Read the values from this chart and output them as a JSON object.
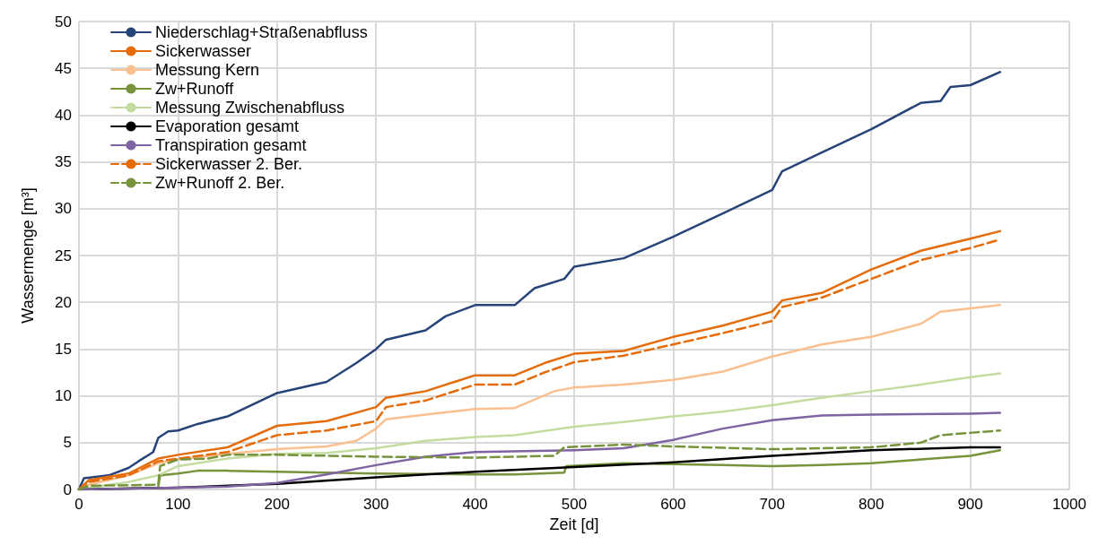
{
  "chart_data": {
    "type": "line",
    "xlabel": "Zeit [d]",
    "ylabel": "Wassermenge [m³]",
    "xlim": [
      0,
      1000
    ],
    "xticks": [
      0,
      100,
      200,
      300,
      400,
      500,
      600,
      700,
      800,
      900,
      1000
    ],
    "ylim": [
      0,
      50
    ],
    "yticks": [
      0,
      5,
      10,
      15,
      20,
      25,
      30,
      35,
      40,
      45,
      50
    ],
    "grid": true,
    "legend": "top left",
    "marker": "none",
    "series": [
      {
        "name": "Niederschlag+Straßenabfluss",
        "color": "#264478",
        "line_style": "solid",
        "x": [
          0,
          5,
          30,
          50,
          60,
          75,
          80,
          90,
          100,
          120,
          150,
          200,
          250,
          280,
          300,
          310,
          350,
          370,
          400,
          440,
          460,
          490,
          500,
          550,
          600,
          650,
          700,
          710,
          750,
          800,
          850,
          870,
          880,
          900,
          930
        ],
        "values": [
          0,
          1.2,
          1.5,
          2.3,
          3,
          4,
          5.5,
          6.2,
          6.3,
          7,
          7.8,
          10.3,
          11.5,
          13.5,
          15,
          16,
          17,
          18.5,
          19.7,
          19.7,
          21.5,
          22.5,
          23.8,
          24.7,
          27,
          29.5,
          32,
          34,
          36,
          38.5,
          41.3,
          41.5,
          43,
          43.2,
          44.6
        ]
      },
      {
        "name": "Sickerwasser",
        "color": "#e46c0a",
        "line_style": "solid",
        "x": [
          0,
          10,
          50,
          80,
          100,
          150,
          200,
          250,
          300,
          310,
          350,
          400,
          440,
          470,
          500,
          550,
          600,
          650,
          700,
          710,
          750,
          800,
          850,
          900,
          930
        ],
        "values": [
          0,
          1,
          1.7,
          3.3,
          3.7,
          4.5,
          6.8,
          7.3,
          8.8,
          9.8,
          10.5,
          12.2,
          12.2,
          13.5,
          14.5,
          14.8,
          16.3,
          17.5,
          19,
          20.2,
          21,
          23.5,
          25.5,
          26.8,
          27.6
        ]
      },
      {
        "name": "Messung Kern",
        "color": "#fac090",
        "line_style": "solid",
        "x": [
          0,
          10,
          50,
          80,
          100,
          150,
          200,
          250,
          280,
          300,
          310,
          350,
          400,
          440,
          480,
          500,
          550,
          600,
          650,
          700,
          750,
          800,
          850,
          870,
          930
        ],
        "values": [
          0,
          0.5,
          1.5,
          2.8,
          3.2,
          3.8,
          4.3,
          4.6,
          5.2,
          6.5,
          7.5,
          8,
          8.6,
          8.7,
          10.5,
          10.9,
          11.2,
          11.7,
          12.6,
          14.2,
          15.5,
          16.3,
          17.7,
          19,
          19.7
        ]
      },
      {
        "name": "Zw+Runoff",
        "color": "#77933c",
        "line_style": "solid",
        "x": [
          0,
          80,
          82,
          100,
          120,
          150,
          200,
          300,
          400,
          440,
          490,
          492,
          550,
          600,
          650,
          700,
          750,
          800,
          850,
          900,
          930
        ],
        "values": [
          0,
          0.2,
          1.5,
          1.7,
          2,
          2,
          1.9,
          1.7,
          1.6,
          1.6,
          1.8,
          2.5,
          2.8,
          2.7,
          2.6,
          2.5,
          2.6,
          2.8,
          3.2,
          3.6,
          4.2
        ]
      },
      {
        "name": "Messung Zwischenabfluss",
        "color": "#c4dc9f",
        "line_style": "solid",
        "x": [
          0,
          50,
          80,
          100,
          150,
          200,
          250,
          300,
          350,
          400,
          440,
          500,
          550,
          600,
          650,
          700,
          750,
          800,
          850,
          900,
          930
        ],
        "values": [
          0,
          0.8,
          1.5,
          2.5,
          3.3,
          3.8,
          3.9,
          4.4,
          5.2,
          5.6,
          5.8,
          6.7,
          7.2,
          7.8,
          8.3,
          9,
          9.8,
          10.5,
          11.2,
          12,
          12.4
        ]
      },
      {
        "name": "Evaporation gesamt",
        "color": "#000000",
        "line_style": "solid",
        "x": [
          0,
          100,
          200,
          300,
          400,
          500,
          600,
          700,
          800,
          900,
          930
        ],
        "values": [
          0,
          0.2,
          0.6,
          1.3,
          1.9,
          2.4,
          2.9,
          3.6,
          4.2,
          4.5,
          4.5
        ]
      },
      {
        "name": "Transpiration gesamt",
        "color": "#8064a2",
        "line_style": "solid",
        "x": [
          0,
          100,
          150,
          200,
          250,
          300,
          350,
          400,
          450,
          500,
          550,
          600,
          650,
          700,
          750,
          800,
          900,
          930
        ],
        "values": [
          0,
          0.2,
          0.3,
          0.7,
          1.6,
          2.6,
          3.5,
          4,
          4.1,
          4.2,
          4.4,
          5.3,
          6.5,
          7.4,
          7.9,
          8,
          8.1,
          8.2
        ]
      },
      {
        "name": "Sickerwasser 2. Ber.",
        "color": "#e46c0a",
        "line_style": "dashed",
        "x": [
          0,
          10,
          50,
          80,
          100,
          150,
          200,
          250,
          300,
          310,
          350,
          400,
          440,
          470,
          500,
          550,
          600,
          650,
          700,
          710,
          750,
          800,
          850,
          900,
          930
        ],
        "values": [
          0,
          0.8,
          1.5,
          3,
          3.3,
          4,
          5.8,
          6.3,
          7.3,
          8.8,
          9.5,
          11.2,
          11.2,
          12.5,
          13.6,
          14.3,
          15.5,
          16.7,
          18,
          19.5,
          20.5,
          22.5,
          24.5,
          25.8,
          26.7
        ]
      },
      {
        "name": "Zw+Runoff 2. Ber.",
        "color": "#77933c",
        "line_style": "dashed",
        "x": [
          0,
          10,
          80,
          82,
          100,
          130,
          150,
          200,
          300,
          400,
          480,
          490,
          550,
          600,
          700,
          800,
          850,
          870,
          930
        ],
        "values": [
          0,
          0.4,
          0.5,
          2.5,
          3.2,
          3.3,
          3.7,
          3.7,
          3.5,
          3.4,
          3.6,
          4.5,
          4.8,
          4.6,
          4.3,
          4.5,
          5,
          5.8,
          6.3
        ]
      }
    ]
  }
}
